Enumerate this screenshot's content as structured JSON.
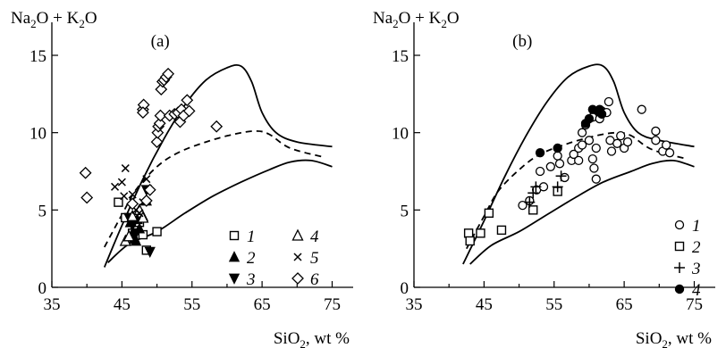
{
  "chart_data": [
    {
      "type": "scatter",
      "panel_label": "(a)",
      "xlabel": "SiO2, wt %",
      "xlabel_parts": [
        "SiO",
        "2",
        ", wt %"
      ],
      "ylabel": "Na2O + K2O",
      "ylabel_parts": [
        "Na",
        "2",
        "O + K",
        "2",
        "O"
      ],
      "xlim": [
        35,
        78
      ],
      "ylim": [
        0,
        16
      ],
      "xticks": [
        "35",
        "45",
        "55",
        "65",
        "75"
      ],
      "yticks": [
        "0",
        "5",
        "10",
        "15"
      ],
      "grid": false,
      "legend": {
        "placement": "bottom-right",
        "columns": 2
      },
      "series": [
        {
          "name": "1",
          "marker": "square-open",
          "points": [
            [
              44.5,
              5.5
            ],
            [
              45.5,
              4.5
            ],
            [
              46.5,
              3.5
            ],
            [
              47.5,
              4.2
            ],
            [
              48.5,
              2.4
            ],
            [
              48.0,
              3.4
            ],
            [
              50.0,
              3.6
            ]
          ]
        },
        {
          "name": "2",
          "marker": "triangle-up-filled",
          "points": [
            [
              46.2,
              4.2
            ],
            [
              46.5,
              3.5
            ],
            [
              46.8,
              3.2
            ],
            [
              47.2,
              4.4
            ],
            [
              47.5,
              3.8
            ],
            [
              48.0,
              4.6
            ],
            [
              48.5,
              5.6
            ],
            [
              47.0,
              3.0
            ]
          ]
        },
        {
          "name": "3",
          "marker": "triangle-down-filled",
          "points": [
            [
              46.0,
              4.5
            ],
            [
              47.0,
              3.5
            ],
            [
              48.5,
              6.3
            ],
            [
              49.0,
              2.3
            ],
            [
              46.5,
              4.0
            ]
          ]
        },
        {
          "name": "4",
          "marker": "triangle-up-open",
          "points": [
            [
              45.5,
              3.0
            ],
            [
              46.0,
              3.3
            ],
            [
              46.5,
              4.6
            ],
            [
              47.5,
              5.0
            ],
            [
              48.0,
              4.5
            ]
          ]
        },
        {
          "name": "5",
          "marker": "x",
          "points": [
            [
              44.0,
              6.5
            ],
            [
              45.0,
              6.8
            ],
            [
              45.5,
              7.7
            ],
            [
              45.3,
              5.9
            ],
            [
              47.0,
              5.0
            ],
            [
              48.0,
              5.5
            ],
            [
              48.5,
              7.0
            ],
            [
              46.5,
              6.0
            ],
            [
              47.5,
              4.8
            ]
          ]
        },
        {
          "name": "6",
          "marker": "diamond-open",
          "points": [
            [
              39.8,
              7.4
            ],
            [
              40.0,
              5.8
            ],
            [
              46.5,
              5.4
            ],
            [
              48.0,
              11.5
            ],
            [
              48.1,
              11.8
            ],
            [
              48.0,
              11.3
            ],
            [
              50.0,
              9.4
            ],
            [
              50.1,
              10.0
            ],
            [
              50.2,
              10.4
            ],
            [
              50.4,
              10.6
            ],
            [
              50.5,
              11.1
            ],
            [
              50.6,
              12.8
            ],
            [
              50.8,
              13.3
            ],
            [
              51.0,
              13.4
            ],
            [
              51.3,
              13.6
            ],
            [
              51.6,
              13.8
            ],
            [
              51.8,
              11.1
            ],
            [
              52.5,
              11.2
            ],
            [
              53.0,
              11.3
            ],
            [
              53.3,
              10.7
            ],
            [
              53.5,
              11.5
            ],
            [
              53.8,
              11.1
            ],
            [
              54.3,
              12.1
            ],
            [
              54.6,
              11.4
            ],
            [
              58.5,
              10.4
            ],
            [
              49.0,
              6.3
            ],
            [
              48.5,
              5.6
            ]
          ]
        }
      ],
      "boundary_curves": [
        {
          "style": "solid",
          "points": [
            [
              42.5,
              1.3
            ],
            [
              45,
              4.0
            ],
            [
              48,
              7.0
            ],
            [
              51,
              9.6
            ],
            [
              54,
              11.8
            ],
            [
              57,
              13.4
            ],
            [
              60,
              14.2
            ],
            [
              62,
              14.3
            ],
            [
              63.5,
              13.3
            ],
            [
              65,
              11.3
            ],
            [
              67,
              10.0
            ],
            [
              70,
              9.4
            ],
            [
              75,
              9.1
            ]
          ]
        },
        {
          "style": "dashed",
          "points": [
            [
              42.5,
              2.6
            ],
            [
              45,
              4.7
            ],
            [
              47,
              6.3
            ],
            [
              50,
              7.8
            ],
            [
              53,
              8.7
            ],
            [
              57,
              9.4
            ],
            [
              61,
              9.9
            ],
            [
              64,
              10.1
            ],
            [
              66,
              9.9
            ],
            [
              69,
              9.0
            ],
            [
              74,
              8.4
            ]
          ]
        },
        {
          "style": "solid",
          "points": [
            [
              43.0,
              1.6
            ],
            [
              46,
              2.8
            ],
            [
              50,
              3.6
            ],
            [
              54,
              4.8
            ],
            [
              58,
              5.9
            ],
            [
              62,
              6.8
            ],
            [
              66,
              7.6
            ],
            [
              69,
              8.1
            ],
            [
              72,
              8.2
            ],
            [
              75,
              7.8
            ]
          ]
        }
      ]
    },
    {
      "type": "scatter",
      "panel_label": "(b)",
      "xlabel": "SiO2, wt %",
      "xlabel_parts": [
        "SiO",
        "2",
        ", wt %"
      ],
      "ylabel": "Na2O + K2O",
      "ylabel_parts": [
        "Na",
        "2",
        "O + K",
        "2",
        "O"
      ],
      "xlim": [
        35,
        78
      ],
      "ylim": [
        0,
        16
      ],
      "xticks": [
        "35",
        "45",
        "55",
        "65",
        "75"
      ],
      "yticks": [
        "0",
        "5",
        "10",
        "15"
      ],
      "grid": false,
      "legend": {
        "placement": "bottom-right",
        "columns": 1
      },
      "series": [
        {
          "name": "1",
          "marker": "circle-open",
          "points": [
            [
              50.5,
              5.3
            ],
            [
              51.5,
              5.6
            ],
            [
              52.5,
              6.3
            ],
            [
              53.0,
              7.5
            ],
            [
              53.5,
              6.5
            ],
            [
              54.5,
              7.8
            ],
            [
              55.5,
              8.5
            ],
            [
              55.8,
              8.0
            ],
            [
              56.5,
              7.1
            ],
            [
              57.5,
              8.2
            ],
            [
              57.8,
              8.6
            ],
            [
              58.5,
              8.2
            ],
            [
              58.5,
              9.0
            ],
            [
              59.0,
              9.2
            ],
            [
              59.0,
              10.0
            ],
            [
              59.5,
              10.5
            ],
            [
              60.0,
              9.5
            ],
            [
              60.5,
              11.0
            ],
            [
              60.5,
              8.3
            ],
            [
              60.7,
              7.7
            ],
            [
              61.0,
              9.0
            ],
            [
              61.0,
              7.0
            ],
            [
              61.5,
              10.9
            ],
            [
              61.8,
              11.4
            ],
            [
              62.5,
              11.3
            ],
            [
              62.8,
              12.0
            ],
            [
              63.0,
              9.5
            ],
            [
              63.2,
              8.8
            ],
            [
              64.0,
              9.3
            ],
            [
              64.5,
              9.8
            ],
            [
              65.0,
              9.0
            ],
            [
              65.5,
              9.4
            ],
            [
              67.5,
              11.5
            ],
            [
              69.5,
              10.1
            ],
            [
              69.5,
              9.5
            ],
            [
              70.5,
              8.8
            ],
            [
              71.0,
              9.2
            ],
            [
              71.5,
              8.7
            ]
          ]
        },
        {
          "name": "2",
          "marker": "square-open",
          "points": [
            [
              42.8,
              3.5
            ],
            [
              43.0,
              3.0
            ],
            [
              44.5,
              3.5
            ],
            [
              45.7,
              4.8
            ],
            [
              47.5,
              3.7
            ],
            [
              52.0,
              5.0
            ],
            [
              55.5,
              6.2
            ]
          ]
        },
        {
          "name": "3",
          "marker": "plus",
          "points": [
            [
              51.5,
              5.5
            ],
            [
              52.0,
              6.1
            ],
            [
              52.4,
              6.5
            ],
            [
              55.5,
              6.5
            ],
            [
              56.0,
              7.2
            ]
          ]
        },
        {
          "name": "4",
          "marker": "circle-filled",
          "points": [
            [
              53.0,
              8.7
            ],
            [
              55.5,
              9.0
            ],
            [
              59.5,
              10.6
            ],
            [
              60.0,
              10.9
            ],
            [
              60.5,
              11.5
            ],
            [
              61.3,
              11.4
            ],
            [
              61.8,
              11.2
            ],
            [
              61.5,
              11.5
            ]
          ]
        }
      ],
      "boundary_curves": [
        {
          "style": "solid",
          "points": [
            [
              42.0,
              1.5
            ],
            [
              45,
              4.3
            ],
            [
              48,
              7.2
            ],
            [
              51,
              9.8
            ],
            [
              54,
              12.0
            ],
            [
              57,
              13.6
            ],
            [
              60,
              14.3
            ],
            [
              62,
              14.3
            ],
            [
              63.5,
              13.3
            ],
            [
              65,
              11.3
            ],
            [
              67,
              10.0
            ],
            [
              70,
              9.5
            ],
            [
              75,
              9.1
            ]
          ]
        },
        {
          "style": "dashed",
          "points": [
            [
              42.5,
              2.5
            ],
            [
              45,
              4.6
            ],
            [
              47,
              6.2
            ],
            [
              50,
              7.6
            ],
            [
              53,
              8.6
            ],
            [
              57,
              9.3
            ],
            [
              61,
              9.8
            ],
            [
              64,
              10.0
            ],
            [
              66,
              9.8
            ],
            [
              69,
              8.9
            ],
            [
              74,
              8.3
            ]
          ]
        },
        {
          "style": "solid",
          "points": [
            [
              43.0,
              1.5
            ],
            [
              46,
              2.7
            ],
            [
              50,
              3.6
            ],
            [
              54,
              4.7
            ],
            [
              58,
              5.8
            ],
            [
              62,
              6.8
            ],
            [
              66,
              7.5
            ],
            [
              69,
              8.0
            ],
            [
              72,
              8.2
            ],
            [
              75,
              7.8
            ]
          ]
        }
      ]
    }
  ]
}
